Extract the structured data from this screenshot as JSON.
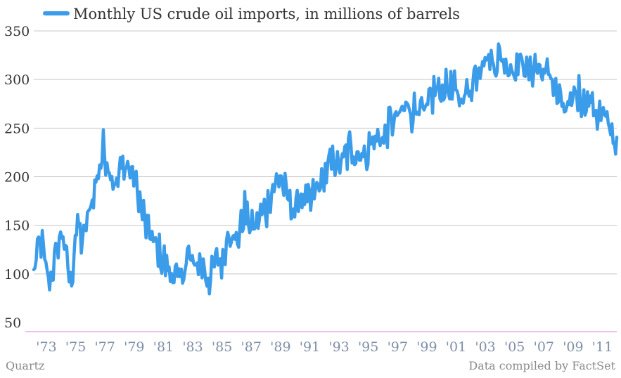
{
  "chart_data": {
    "type": "line",
    "series": [
      {
        "name": "Monthly US crude oil imports, in millions of barrels",
        "color": "#3b9cea",
        "anchors": [
          [
            1973.0,
            100
          ],
          [
            1973.25,
            120
          ],
          [
            1973.5,
            135
          ],
          [
            1973.8,
            108
          ],
          [
            1974.1,
            90
          ],
          [
            1974.4,
            110
          ],
          [
            1974.7,
            132
          ],
          [
            1974.95,
            145
          ],
          [
            1975.2,
            120
          ],
          [
            1975.4,
            100
          ],
          [
            1975.6,
            88
          ],
          [
            1975.8,
            135
          ],
          [
            1976.0,
            148
          ],
          [
            1976.4,
            132
          ],
          [
            1976.7,
            160
          ],
          [
            1977.0,
            175
          ],
          [
            1977.3,
            198
          ],
          [
            1977.6,
            218
          ],
          [
            1977.8,
            228
          ],
          [
            1978.1,
            210
          ],
          [
            1978.4,
            196
          ],
          [
            1978.7,
            192
          ],
          [
            1979.0,
            210
          ],
          [
            1979.3,
            212
          ],
          [
            1979.6,
            206
          ],
          [
            1979.9,
            200
          ],
          [
            1980.1,
            185
          ],
          [
            1980.3,
            170
          ],
          [
            1980.6,
            152
          ],
          [
            1981.0,
            140
          ],
          [
            1981.4,
            128
          ],
          [
            1981.8,
            115
          ],
          [
            1982.1,
            108
          ],
          [
            1982.4,
            96
          ],
          [
            1982.7,
            102
          ],
          [
            1983.0,
            88
          ],
          [
            1983.3,
            112
          ],
          [
            1983.6,
            120
          ],
          [
            1983.9,
            108
          ],
          [
            1984.3,
            112
          ],
          [
            1984.7,
            105
          ],
          [
            1985.0,
            92
          ],
          [
            1985.3,
            112
          ],
          [
            1985.6,
            118
          ],
          [
            1985.8,
            108
          ],
          [
            1986.0,
            120
          ],
          [
            1986.3,
            148
          ],
          [
            1986.6,
            140
          ],
          [
            1986.9,
            132
          ],
          [
            1987.1,
            145
          ],
          [
            1987.4,
            165
          ],
          [
            1987.8,
            150
          ],
          [
            1988.1,
            148
          ],
          [
            1988.5,
            160
          ],
          [
            1988.9,
            168
          ],
          [
            1989.2,
            182
          ],
          [
            1989.6,
            196
          ],
          [
            1989.9,
            200
          ],
          [
            1990.2,
            180
          ],
          [
            1990.5,
            172
          ],
          [
            1990.8,
            165
          ],
          [
            1991.2,
            180
          ],
          [
            1991.6,
            172
          ],
          [
            1991.9,
            170
          ],
          [
            1992.2,
            185
          ],
          [
            1992.5,
            190
          ],
          [
            1992.9,
            202
          ],
          [
            1993.2,
            208
          ],
          [
            1993.5,
            218
          ],
          [
            1993.9,
            210
          ],
          [
            1994.2,
            220
          ],
          [
            1994.6,
            228
          ],
          [
            1995.0,
            225
          ],
          [
            1995.4,
            222
          ],
          [
            1995.8,
            225
          ],
          [
            1996.1,
            235
          ],
          [
            1996.5,
            240
          ],
          [
            1996.9,
            238
          ],
          [
            1997.2,
            252
          ],
          [
            1997.6,
            258
          ],
          [
            1997.9,
            262
          ],
          [
            1998.3,
            270
          ],
          [
            1998.7,
            272
          ],
          [
            1999.0,
            268
          ],
          [
            1999.4,
            275
          ],
          [
            1999.8,
            262
          ],
          [
            2000.1,
            280
          ],
          [
            2000.5,
            290
          ],
          [
            2000.9,
            285
          ],
          [
            2001.2,
            295
          ],
          [
            2001.6,
            288
          ],
          [
            2001.9,
            282
          ],
          [
            2002.3,
            280
          ],
          [
            2002.7,
            290
          ],
          [
            2003.0,
            298
          ],
          [
            2003.3,
            312
          ],
          [
            2003.7,
            320
          ],
          [
            2004.0,
            322
          ],
          [
            2004.4,
            318
          ],
          [
            2004.8,
            325
          ],
          [
            2005.1,
            318
          ],
          [
            2005.5,
            312
          ],
          [
            2005.9,
            315
          ],
          [
            2006.2,
            320
          ],
          [
            2006.6,
            312
          ],
          [
            2006.9,
            308
          ],
          [
            2007.2,
            315
          ],
          [
            2007.6,
            310
          ],
          [
            2007.9,
            305
          ],
          [
            2008.2,
            312
          ],
          [
            2008.5,
            296
          ],
          [
            2008.8,
            280
          ],
          [
            2009.1,
            275
          ],
          [
            2009.4,
            265
          ],
          [
            2009.7,
            275
          ],
          [
            2010.0,
            290
          ],
          [
            2010.3,
            285
          ],
          [
            2010.7,
            275
          ],
          [
            2011.0,
            280
          ],
          [
            2011.4,
            268
          ],
          [
            2011.8,
            262
          ],
          [
            2012.2,
            258
          ],
          [
            2012.4,
            250
          ],
          [
            2012.6,
            245
          ],
          [
            2012.75,
            235
          ],
          [
            2012.85,
            225
          ]
        ]
      }
    ],
    "xrange": [
      1973.0,
      2012.85
    ],
    "ylim": [
      50,
      350
    ],
    "yticks": [
      50,
      100,
      150,
      200,
      250,
      300,
      350
    ],
    "xticks": [
      {
        "year": 1973,
        "label": "'73"
      },
      {
        "year": 1975,
        "label": "'75"
      },
      {
        "year": 1977,
        "label": "'77"
      },
      {
        "year": 1979,
        "label": "'79"
      },
      {
        "year": 1981,
        "label": "'81"
      },
      {
        "year": 1983,
        "label": "'83"
      },
      {
        "year": 1985,
        "label": "'85"
      },
      {
        "year": 1987,
        "label": "'87"
      },
      {
        "year": 1989,
        "label": "'89"
      },
      {
        "year": 1991,
        "label": "'91"
      },
      {
        "year": 1993,
        "label": "'93"
      },
      {
        "year": 1995,
        "label": "'95"
      },
      {
        "year": 1997,
        "label": "'97"
      },
      {
        "year": 1999,
        "label": "'99"
      },
      {
        "year": 2001,
        "label": "'01"
      },
      {
        "year": 2003,
        "label": "'03"
      },
      {
        "year": 2005,
        "label": "'05"
      },
      {
        "year": 2007,
        "label": "'07"
      },
      {
        "year": 2009,
        "label": "'09"
      },
      {
        "year": 2011,
        "label": "'11"
      }
    ],
    "grid": true,
    "legend": "top-left",
    "xlabel": "",
    "ylabel": ""
  },
  "footer": {
    "source_left": "Quartz",
    "source_right": "Data compiled by FactSet"
  },
  "colors": {
    "line": "#3b9cea",
    "grid": "#c8c8c8",
    "baseline": "#e07fe0",
    "xtick": "#7f8fa8"
  }
}
